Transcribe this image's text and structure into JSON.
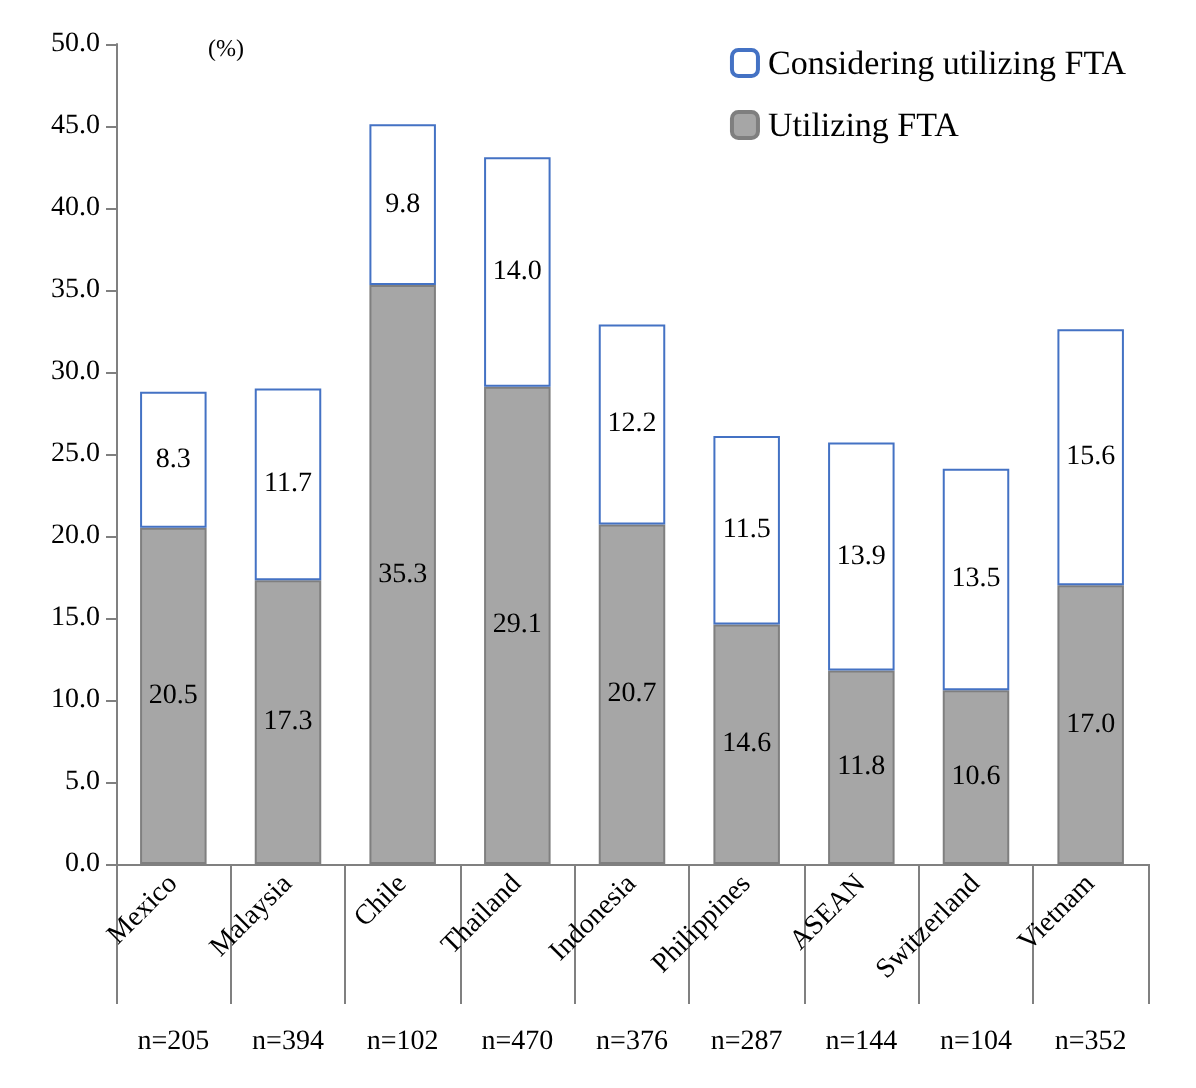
{
  "chart_data": {
    "type": "bar",
    "stacked": true,
    "ylabel": "(%)",
    "categories": [
      "Mexico",
      "Malaysia",
      "Chile",
      "Thailand",
      "Indonesia",
      "Philippines",
      "ASEAN",
      "Switzerland",
      "Vietnam"
    ],
    "series": [
      {
        "name": "Utilizing FTA",
        "color": "#a6a6a6",
        "values": [
          20.5,
          17.3,
          35.3,
          29.1,
          20.7,
          14.6,
          11.8,
          10.6,
          17.0
        ],
        "value_labels": [
          "20.5",
          "17.3",
          "35.3",
          "29.1",
          "20.7",
          "14.6",
          "11.8",
          "10.6",
          "17.0"
        ]
      },
      {
        "name": "Considering utilizing FTA",
        "color": "#ffffff",
        "values": [
          8.3,
          11.7,
          9.8,
          14.0,
          12.2,
          11.5,
          13.9,
          13.5,
          15.6
        ],
        "value_labels": [
          "8.3",
          "11.7",
          "9.8",
          "14.0",
          "12.2",
          "11.5",
          "13.9",
          "13.5",
          "15.6"
        ]
      }
    ],
    "ylim": [
      0,
      50
    ],
    "yticks": [
      {
        "value": 0,
        "label": "0.0"
      },
      {
        "value": 5,
        "label": "5.0"
      },
      {
        "value": 10,
        "label": "10.0"
      },
      {
        "value": 15,
        "label": "15.0"
      },
      {
        "value": 20,
        "label": "20.0"
      },
      {
        "value": 25,
        "label": "25.0"
      },
      {
        "value": 30,
        "label": "30.0"
      },
      {
        "value": 35,
        "label": "35.0"
      },
      {
        "value": 40,
        "label": "40.0"
      },
      {
        "value": 45,
        "label": "45.0"
      },
      {
        "value": 50,
        "label": "50.0"
      }
    ],
    "annotations": [
      "n=205",
      "n=394",
      "n=102",
      "n=470",
      "n=376",
      "n=287",
      "n=144",
      "n=104",
      "n=352"
    ],
    "legend": "top right",
    "grid": false
  }
}
